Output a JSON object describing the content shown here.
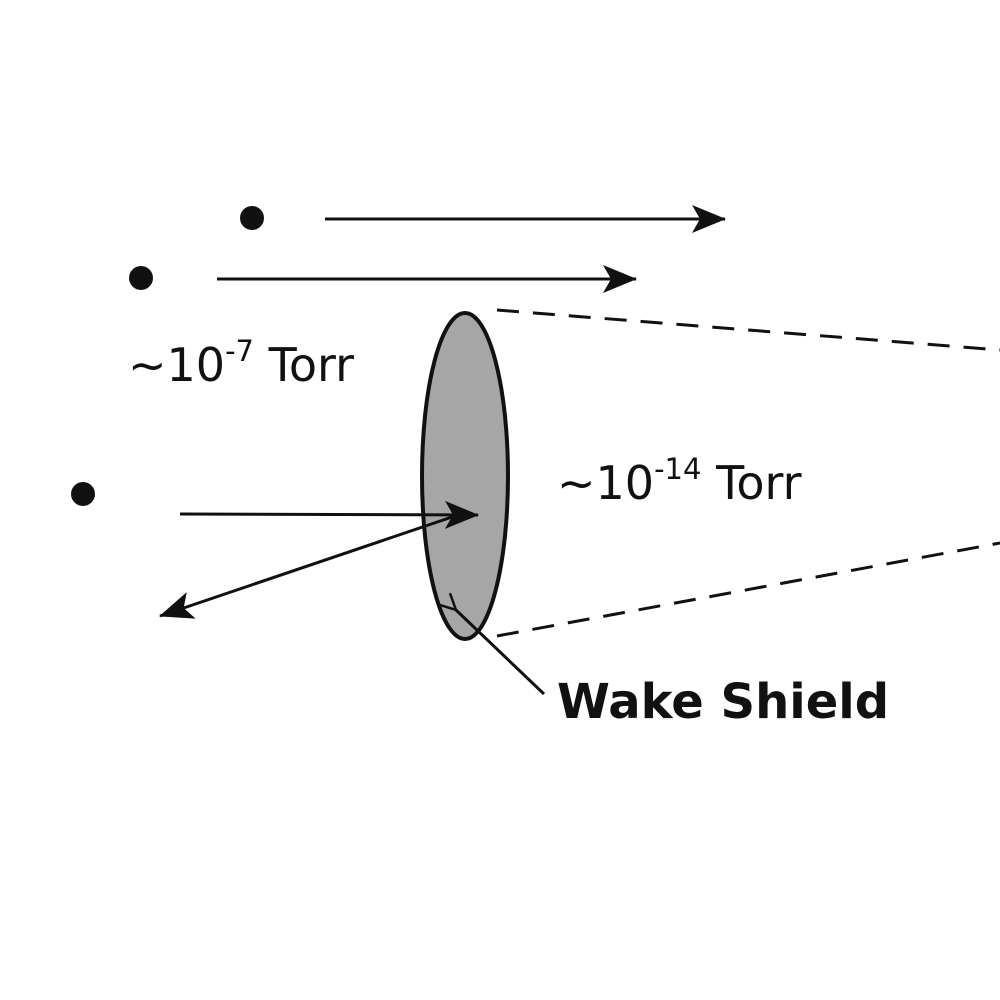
{
  "diagram": {
    "outside_pressure": {
      "prefix": "~10",
      "exponent": "-7",
      "unit": " Torr"
    },
    "wake_pressure": {
      "prefix": "~10",
      "exponent": "-14",
      "unit": " Torr"
    },
    "shield_label": "Wake Shield",
    "colors": {
      "ink": "#111111",
      "shield_fill": "#a6a6a6",
      "background": "#ffffff"
    }
  }
}
